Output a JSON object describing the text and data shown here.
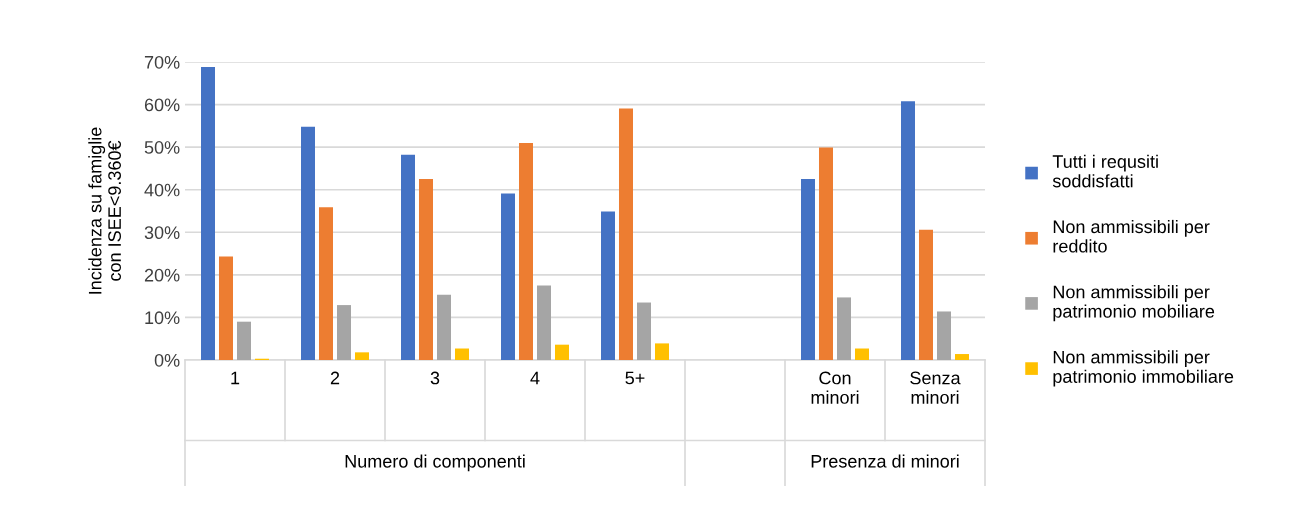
{
  "chart_data": {
    "type": "bar",
    "ylabel": "Incidenza su famiglie\ncon ISEE<9.360€",
    "categories": [
      "1",
      "2",
      "3",
      "4",
      "5+",
      null,
      "Con\nminori",
      "Senza\nminori"
    ],
    "series": [
      {
        "name": "Tutti i requsiti soddisfatti",
        "color": "#4472c4",
        "values": [
          68.8,
          54.8,
          48.2,
          39.1,
          34.9,
          null,
          42.5,
          60.8
        ]
      },
      {
        "name": "Non ammissibili per reddito",
        "color": "#ed7d31",
        "values": [
          24.3,
          35.9,
          42.5,
          51.0,
          59.1,
          null,
          49.9,
          30.6
        ]
      },
      {
        "name": "Non ammissibili per patrimonio mobiliare",
        "color": "#a5a5a5",
        "values": [
          9.0,
          12.9,
          15.3,
          17.5,
          13.5,
          null,
          14.7,
          11.4
        ]
      },
      {
        "name": "Non ammissibili per patrimonio immobiliare",
        "color": "#ffc000",
        "values": [
          0.3,
          1.8,
          2.7,
          3.6,
          3.9,
          null,
          2.7,
          1.4
        ]
      }
    ],
    "annotations": [
      "Numero di componenti",
      "Presenza di minori"
    ],
    "ylim": [
      0,
      70
    ],
    "yticks": [
      {
        "value": 0,
        "label": "0%"
      },
      {
        "value": 10,
        "label": "10%"
      },
      {
        "value": 20,
        "label": "20%"
      },
      {
        "value": 30,
        "label": "30%"
      },
      {
        "value": 40,
        "label": "40%"
      },
      {
        "value": 50,
        "label": "50%"
      },
      {
        "value": 60,
        "label": "60%"
      },
      {
        "value": 70,
        "label": "70%"
      }
    ],
    "grid": "y",
    "legend": "right"
  }
}
